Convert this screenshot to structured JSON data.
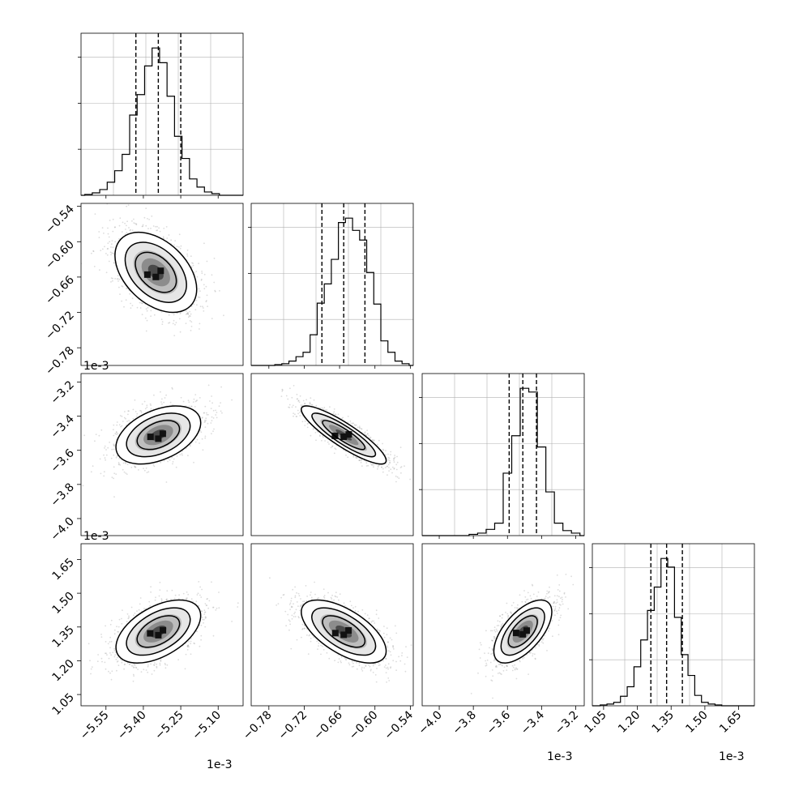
{
  "figure": {
    "type": "corner-plot",
    "exponent_label": "1e-3"
  },
  "chart_data": [
    {
      "type": "histogram",
      "panel": "0-0",
      "param": 0,
      "xlim": [
        -5.65,
        -5.0
      ],
      "bins_x": [
        -5.62,
        -5.59,
        -5.56,
        -5.53,
        -5.5,
        -5.47,
        -5.44,
        -5.41,
        -5.38,
        -5.35,
        -5.32,
        -5.29,
        -5.26,
        -5.23,
        -5.2,
        -5.17,
        -5.14,
        -5.11,
        -5.08
      ],
      "counts": [
        1,
        3,
        7,
        16,
        30,
        50,
        98,
        123,
        158,
        180,
        162,
        121,
        72,
        45,
        20,
        10,
        4,
        2,
        0
      ],
      "quantiles": [
        -5.43,
        -5.34,
        -5.25
      ],
      "grid": true
    },
    {
      "type": "histogram",
      "panel": "1-1",
      "param": 1,
      "xlim": [
        -0.81,
        -0.535
      ],
      "bins_x": [
        -0.8,
        -0.788,
        -0.776,
        -0.764,
        -0.752,
        -0.74,
        -0.728,
        -0.716,
        -0.704,
        -0.692,
        -0.68,
        -0.668,
        -0.656,
        -0.644,
        -0.632,
        -0.62,
        -0.608,
        -0.596,
        -0.584,
        -0.572,
        -0.56,
        -0.548
      ],
      "counts": [
        0,
        0,
        0,
        1,
        2,
        5,
        10,
        15,
        35,
        71,
        93,
        121,
        163,
        168,
        154,
        143,
        106,
        70,
        28,
        15,
        5,
        2
      ],
      "quantiles": [
        -0.69,
        -0.653,
        -0.617
      ],
      "grid": true
    },
    {
      "type": "histogram",
      "panel": "2-2",
      "param": 2,
      "xlim": [
        -4.1,
        -3.15
      ],
      "bins_x": [
        -4.05,
        -4.0,
        -3.95,
        -3.9,
        -3.85,
        -3.8,
        -3.75,
        -3.7,
        -3.65,
        -3.6,
        -3.55,
        -3.5,
        -3.45,
        -3.4,
        -3.35,
        -3.3,
        -3.25,
        -3.2
      ],
      "counts": [
        0,
        0,
        0,
        0,
        0,
        1,
        2,
        5,
        10,
        50,
        80,
        118,
        115,
        71,
        35,
        10,
        4,
        2
      ],
      "quantiles": [
        -3.59,
        -3.51,
        -3.43
      ],
      "grid": true
    },
    {
      "type": "histogram",
      "panel": "3-3",
      "param": 3,
      "xlim": [
        1.0,
        1.72
      ],
      "bins_x": [
        1.02,
        1.05,
        1.08,
        1.11,
        1.14,
        1.17,
        1.2,
        1.23,
        1.26,
        1.29,
        1.32,
        1.35,
        1.38,
        1.41,
        1.44,
        1.47,
        1.5,
        1.53,
        1.56
      ],
      "counts": [
        0,
        1,
        2,
        4,
        11,
        22,
        45,
        76,
        110,
        137,
        170,
        160,
        102,
        59,
        35,
        12,
        4,
        2,
        1
      ],
      "quantiles": [
        1.26,
        1.33,
        1.4
      ],
      "grid": true
    },
    {
      "type": "scatter-density",
      "panel": "1-0",
      "x_param": 0,
      "y_param": 1,
      "xlim": [
        -5.65,
        -5.0
      ],
      "ylim": [
        -0.81,
        -0.535
      ],
      "center": [
        -5.35,
        -0.652
      ],
      "sd": [
        0.082,
        0.034
      ],
      "corr": -0.42,
      "yticks": [
        -0.54,
        -0.6,
        -0.66,
        -0.72,
        -0.78
      ]
    },
    {
      "type": "scatter-density",
      "panel": "2-0",
      "x_param": 0,
      "y_param": 2,
      "xlim": [
        -5.65,
        -5.0
      ],
      "ylim": [
        -4.1,
        -3.15
      ],
      "center": [
        -5.34,
        -3.51
      ],
      "sd": [
        0.085,
        0.085
      ],
      "corr": 0.42,
      "yticks": [
        -3.2,
        -3.4,
        -3.6,
        -3.8,
        -4.0
      ]
    },
    {
      "type": "scatter-density",
      "panel": "2-1",
      "x_param": 1,
      "y_param": 2,
      "xlim": [
        -0.81,
        -0.535
      ],
      "ylim": [
        -4.1,
        -3.15
      ],
      "center": [
        -0.653,
        -3.51
      ],
      "sd": [
        0.036,
        0.085
      ],
      "corr": -0.88
    },
    {
      "type": "scatter-density",
      "panel": "3-0",
      "x_param": 0,
      "y_param": 3,
      "xlim": [
        -5.65,
        -5.0
      ],
      "ylim": [
        1.0,
        1.72
      ],
      "center": [
        -5.34,
        1.33
      ],
      "sd": [
        0.085,
        0.07
      ],
      "corr": 0.5,
      "yticks": [
        1.05,
        1.2,
        1.35,
        1.5,
        1.65
      ],
      "xticks": [
        -5.55,
        -5.4,
        -5.25,
        -5.1
      ]
    },
    {
      "type": "scatter-density",
      "panel": "3-1",
      "x_param": 1,
      "y_param": 3,
      "xlim": [
        -0.81,
        -0.535
      ],
      "ylim": [
        1.0,
        1.72
      ],
      "center": [
        -0.653,
        1.33
      ],
      "sd": [
        0.036,
        0.07
      ],
      "corr": -0.62,
      "xticks": [
        -0.78,
        -0.72,
        -0.66,
        -0.6,
        -0.54
      ]
    },
    {
      "type": "scatter-density",
      "panel": "3-2",
      "x_param": 2,
      "y_param": 3,
      "xlim": [
        -4.1,
        -3.15
      ],
      "ylim": [
        1.0,
        1.72
      ],
      "center": [
        -3.51,
        1.33
      ],
      "sd": [
        0.085,
        0.07
      ],
      "corr": 0.62,
      "xticks": [
        -4.0,
        -3.8,
        -3.6,
        -3.4,
        -3.2
      ]
    },
    {
      "type": "axis",
      "panel": "3-3-x",
      "xticks": [
        1.05,
        1.2,
        1.35,
        1.5,
        1.65
      ]
    }
  ],
  "tick_labels": {
    "y_param1": [
      "−0.54",
      "−0.60",
      "−0.66",
      "−0.72",
      "−0.78"
    ],
    "y_param2": [
      "−3.2",
      "−3.4",
      "−3.6",
      "−3.8",
      "−4.0"
    ],
    "y_param3": [
      "1.05",
      "1.20",
      "1.35",
      "1.50",
      "1.65"
    ],
    "x_param0": [
      "−5.55",
      "−5.40",
      "−5.25",
      "−5.10"
    ],
    "x_param1": [
      "−0.78",
      "−0.72",
      "−0.66",
      "−0.60",
      "−0.54"
    ],
    "x_param2": [
      "−4.0",
      "−3.8",
      "−3.6",
      "−3.4",
      "−3.2"
    ],
    "x_param3": [
      "1.05",
      "1.20",
      "1.35",
      "1.50",
      "1.65"
    ]
  }
}
